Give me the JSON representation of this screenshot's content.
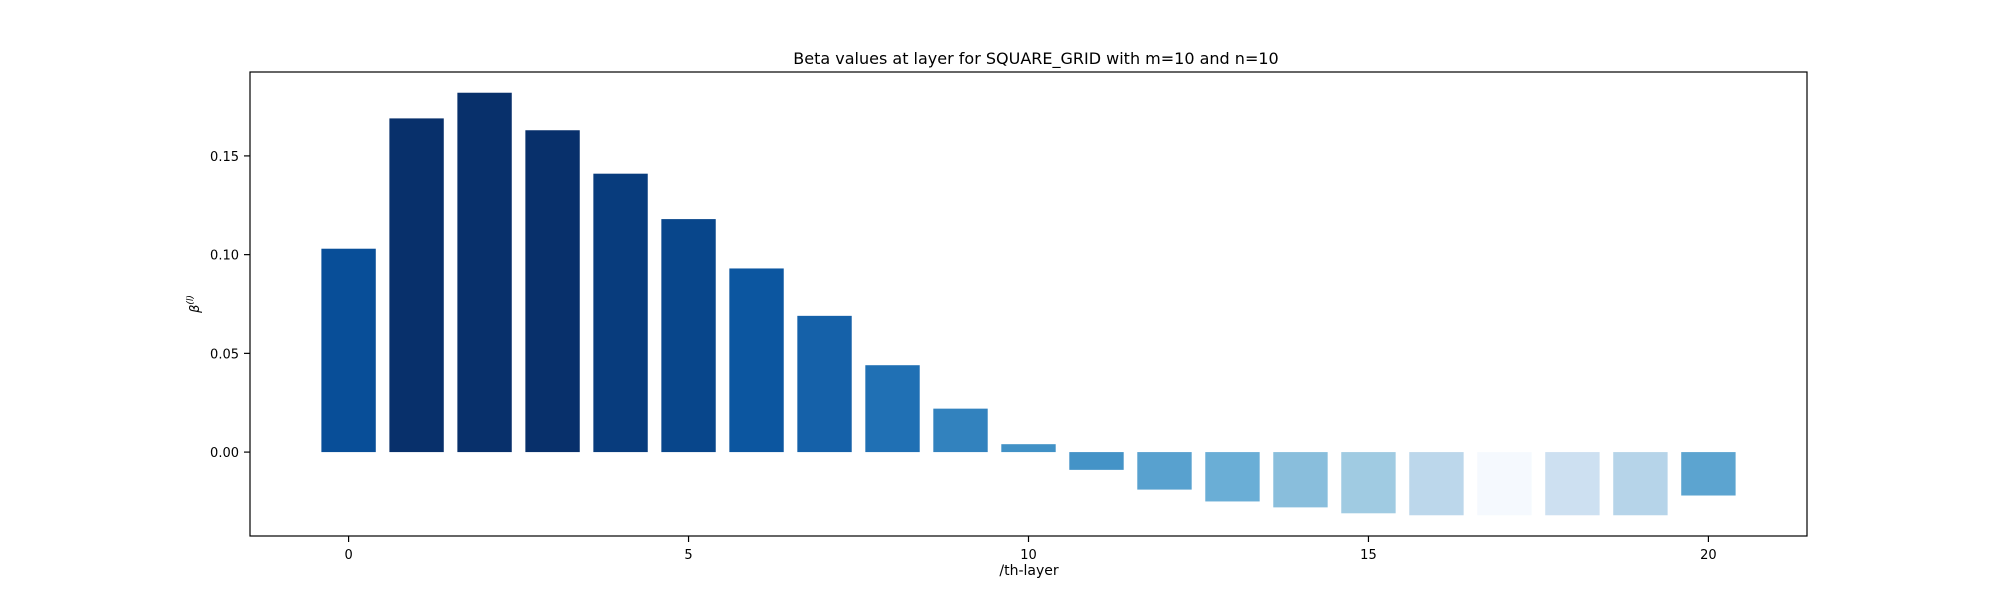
{
  "chart_data": {
    "type": "bar",
    "title": "Beta values at layer for SQUARE_GRID with m=10 and n=10",
    "xlabel": "/th-layer",
    "ylabel": "β",
    "ylabel_superscript": "(l)",
    "x": [
      0,
      1,
      2,
      3,
      4,
      5,
      6,
      7,
      8,
      9,
      10,
      11,
      12,
      13,
      14,
      15,
      16,
      17,
      18,
      19,
      20
    ],
    "values": [
      0.103,
      0.169,
      0.182,
      0.163,
      0.141,
      0.118,
      0.093,
      0.069,
      0.044,
      0.022,
      0.004,
      -0.009,
      -0.019,
      -0.025,
      -0.028,
      -0.031,
      -0.032,
      -0.032,
      -0.032,
      -0.032,
      -0.022
    ],
    "xlim": [
      -1.45,
      21.45
    ],
    "ylim": [
      -0.0425,
      0.1925
    ],
    "xticks": [
      0,
      5,
      10,
      15,
      20
    ],
    "yticks": [
      0.0,
      0.05,
      0.1,
      0.15
    ],
    "ytick_labels": [
      "0.00",
      "0.05",
      "0.10",
      "0.15"
    ],
    "colormap": "Blues",
    "bar_colors": [
      "#084e98",
      "#08306b",
      "#08306b",
      "#08306b",
      "#083c7d",
      "#08468b",
      "#0c56a0",
      "#1561a9",
      "#2070b4",
      "#3282be",
      "#4191c6",
      "#4493c7",
      "#58a1cf",
      "#6aaed6",
      "#89bedc",
      "#a0cbe2",
      "#bcd7eb",
      "#f5f9fe",
      "#cde0f1",
      "#b6d4e9",
      "#5ca4d0"
    ],
    "grid": false,
    "legend": "none"
  }
}
